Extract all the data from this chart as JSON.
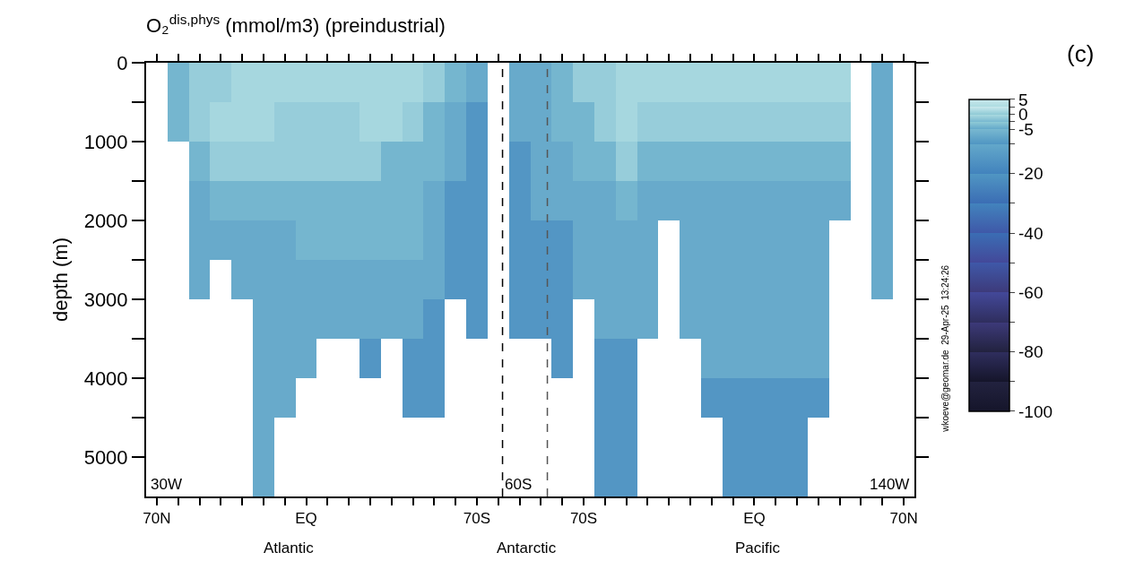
{
  "chart_data": {
    "type": "heatmap",
    "title": "O₂$^{dis,phys}$ (mmol/m3) (preindustrial)",
    "ylabel": "depth (m)",
    "categories": [
      "70N",
      null,
      null,
      null,
      null,
      null,
      null,
      "EQ",
      null,
      null,
      null,
      null,
      null,
      null,
      null,
      "70S",
      null,
      null,
      null,
      null,
      "70S",
      null,
      null,
      null,
      null,
      null,
      null,
      null,
      "EQ",
      null,
      null,
      null,
      null,
      null,
      null,
      "70N"
    ],
    "ylim": [
      5500,
      0
    ],
    "yticks": [
      0,
      {
        "value": 500,
        "label": null
      },
      1000,
      {
        "value": 1500,
        "label": null
      },
      2000,
      {
        "value": 2500,
        "label": null
      },
      3000,
      {
        "value": 3500,
        "label": null
      },
      4000,
      {
        "value": 4500,
        "label": null
      },
      5000
    ],
    "cells": [
      [
        null,
        -4,
        -1,
        -1,
        1,
        1,
        1,
        1,
        1,
        1,
        1,
        1,
        1,
        -1,
        -4,
        -7,
        null,
        -7,
        -7,
        -4,
        -1,
        -1,
        1,
        1,
        1,
        1,
        1,
        1,
        1,
        1,
        1,
        1,
        1,
        null,
        -7,
        null
      ],
      [
        null,
        -4,
        -1,
        1,
        1,
        1,
        -1,
        -1,
        -1,
        -1,
        1,
        1,
        -1,
        -4,
        -7,
        -15,
        null,
        -7,
        -7,
        -4,
        -4,
        -1,
        1,
        -1,
        -1,
        -1,
        -1,
        -1,
        -1,
        -1,
        -1,
        -1,
        -1,
        null,
        -7,
        null
      ],
      [
        null,
        null,
        -4,
        -1,
        -1,
        -1,
        -1,
        -1,
        -1,
        -1,
        -1,
        -4,
        -4,
        -4,
        -7,
        -15,
        null,
        -15,
        -7,
        -7,
        -4,
        -4,
        -1,
        -4,
        -4,
        -4,
        -4,
        -4,
        -4,
        -4,
        -4,
        -4,
        -4,
        null,
        -7,
        null
      ],
      [
        null,
        null,
        -7,
        -4,
        -4,
        -4,
        -4,
        -4,
        -4,
        -4,
        -4,
        -4,
        -4,
        -7,
        -15,
        -15,
        null,
        -15,
        -7,
        -7,
        -7,
        -7,
        -4,
        -7,
        -7,
        -7,
        -7,
        -7,
        -7,
        -7,
        -7,
        -7,
        -7,
        null,
        -7,
        null
      ],
      [
        null,
        null,
        -7,
        -7,
        -7,
        -7,
        -7,
        -4,
        -4,
        -4,
        -4,
        -4,
        -4,
        -7,
        -15,
        -15,
        null,
        -15,
        -15,
        -15,
        -7,
        -7,
        -7,
        -7,
        null,
        -7,
        -7,
        -7,
        -7,
        -7,
        -7,
        -7,
        null,
        null,
        -7,
        null
      ],
      [
        null,
        null,
        -7,
        null,
        -7,
        -7,
        -7,
        -7,
        -7,
        -7,
        -7,
        -7,
        -7,
        -7,
        -15,
        -15,
        null,
        -15,
        -15,
        -15,
        -7,
        -7,
        -7,
        -7,
        null,
        -7,
        -7,
        -7,
        -7,
        -7,
        -7,
        -7,
        null,
        null,
        -7,
        null
      ],
      [
        null,
        null,
        null,
        null,
        null,
        -7,
        -7,
        -7,
        -7,
        -7,
        -7,
        -7,
        -7,
        -15,
        null,
        -15,
        null,
        -15,
        -15,
        -15,
        null,
        -7,
        -7,
        -7,
        null,
        -7,
        -7,
        -7,
        -7,
        -7,
        -7,
        -7,
        null,
        null,
        null,
        null
      ],
      [
        null,
        null,
        null,
        null,
        null,
        -7,
        -7,
        -7,
        null,
        null,
        -15,
        null,
        -15,
        -15,
        null,
        null,
        null,
        null,
        null,
        -15,
        null,
        -15,
        -15,
        null,
        null,
        null,
        -7,
        -7,
        -7,
        -7,
        -7,
        -7,
        null,
        null,
        null,
        null
      ],
      [
        null,
        null,
        null,
        null,
        null,
        -7,
        -7,
        null,
        null,
        null,
        null,
        null,
        -15,
        -15,
        null,
        null,
        null,
        null,
        null,
        null,
        null,
        -15,
        -15,
        null,
        null,
        null,
        -15,
        -15,
        -15,
        -15,
        -15,
        -15,
        null,
        null,
        null,
        null
      ],
      [
        null,
        null,
        null,
        null,
        null,
        -7,
        null,
        null,
        null,
        null,
        null,
        null,
        null,
        null,
        null,
        null,
        null,
        null,
        null,
        null,
        null,
        -15,
        -15,
        null,
        null,
        null,
        null,
        -15,
        -15,
        -15,
        -15,
        null,
        null,
        null,
        null,
        null
      ],
      [
        null,
        null,
        null,
        null,
        null,
        -7,
        null,
        null,
        null,
        null,
        null,
        null,
        null,
        null,
        null,
        null,
        null,
        null,
        null,
        null,
        null,
        -15,
        -15,
        null,
        null,
        null,
        null,
        -15,
        -15,
        -15,
        -15,
        null,
        null,
        null,
        null,
        null
      ]
    ],
    "clim": [
      -100,
      5
    ],
    "cticks": [
      5,
      {
        "value": 2.5,
        "label": null
      },
      0,
      {
        "value": -2.5,
        "label": null
      },
      -5,
      {
        "value": -10,
        "label": null
      },
      -20,
      {
        "value": -30,
        "label": null
      },
      -40,
      {
        "value": -50,
        "label": null
      },
      -60,
      {
        "value": -70,
        "label": null
      },
      -80,
      {
        "value": -90,
        "label": null
      },
      -100
    ],
    "colors": [
      "#c8e8ec",
      "#acdbe0",
      "#90cbd6",
      "#78b8d0",
      "#63a8ca",
      "#5096c3",
      "#4283bd",
      "#3b6db4",
      "#3f58a8",
      "#434899",
      "#3d3a7a",
      "#2f2e5e",
      "#22223f",
      "#15152a"
    ],
    "annotations": [
      "(c)",
      "30W",
      "60S",
      "140W",
      "Atlantic",
      "Antarctic",
      "Pacific",
      "wkoeve@geomar.de  29-Apr-25  13:24:26"
    ]
  }
}
